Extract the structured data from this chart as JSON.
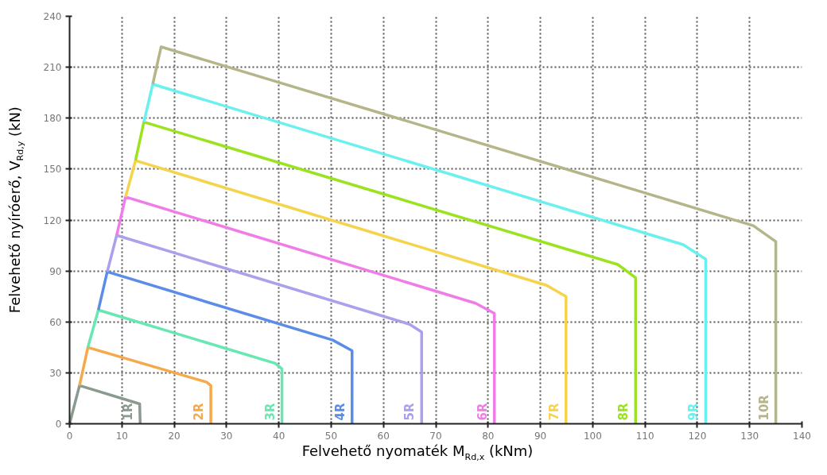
{
  "chart_data": {
    "type": "line",
    "xlabel": "Felvehető nyomaték M$_{Rd,x}$ (kNm)",
    "ylabel": "Felvehető nyíróerő, V$_{Rd,y}$ (kN)",
    "xlim": [
      0,
      140
    ],
    "ylim": [
      0,
      240
    ],
    "xticks": [
      0,
      10,
      20,
      30,
      40,
      50,
      60,
      70,
      80,
      90,
      100,
      110,
      120,
      130,
      140
    ],
    "yticks": [
      0,
      30,
      60,
      90,
      120,
      150,
      180,
      210,
      240
    ],
    "grid": true,
    "marker": "none",
    "line_style": "solid",
    "series": [
      {
        "name": "1R",
        "color": "#8a9a8f",
        "x": [
          0,
          1.9,
          13.4,
          13.5
        ],
        "values": [
          0,
          22.5,
          11.7,
          0
        ]
      },
      {
        "name": "2R",
        "color": "#f5a94a",
        "x": [
          1.9,
          3.5,
          26.2,
          27,
          27
        ],
        "values": [
          22.5,
          45,
          24.5,
          22.5,
          0
        ]
      },
      {
        "name": "3R",
        "color": "#66e8b0",
        "x": [
          3.5,
          5.5,
          39.3,
          40.6,
          40.6
        ],
        "values": [
          45,
          67,
          35.6,
          32.3,
          0
        ]
      },
      {
        "name": "4R",
        "color": "#5b8de8",
        "x": [
          5.5,
          7.2,
          50.3,
          54,
          54
        ],
        "values": [
          67,
          89.5,
          49.3,
          43,
          0
        ]
      },
      {
        "name": "5R",
        "color": "#a9a1ec",
        "x": [
          7.2,
          9,
          65,
          67.3,
          67.3
        ],
        "values": [
          89.5,
          111,
          58.6,
          54,
          0
        ]
      },
      {
        "name": "6R",
        "color": "#f07ce8",
        "x": [
          9,
          10.7,
          77.6,
          81.2,
          81.2
        ],
        "values": [
          111,
          133.6,
          71,
          65,
          0
        ]
      },
      {
        "name": "7R",
        "color": "#f5d34a",
        "x": [
          10.7,
          12.6,
          91.2,
          94.9,
          94.9
        ],
        "values": [
          133.6,
          155,
          81.5,
          75,
          0
        ]
      },
      {
        "name": "8R",
        "color": "#9be31f",
        "x": [
          12.6,
          14.2,
          104.8,
          108.2,
          108.2
        ],
        "values": [
          155,
          177.7,
          93.8,
          86,
          0
        ]
      },
      {
        "name": "9R",
        "color": "#6af0ef",
        "x": [
          14.2,
          15.9,
          117.3,
          121.6,
          121.6
        ],
        "values": [
          177.7,
          200,
          105.5,
          97,
          0
        ]
      },
      {
        "name": "10R",
        "color": "#b5b58a",
        "x": [
          15.9,
          17.5,
          130.7,
          135,
          135
        ],
        "values": [
          200,
          222,
          116.7,
          107.3,
          0
        ]
      }
    ]
  }
}
